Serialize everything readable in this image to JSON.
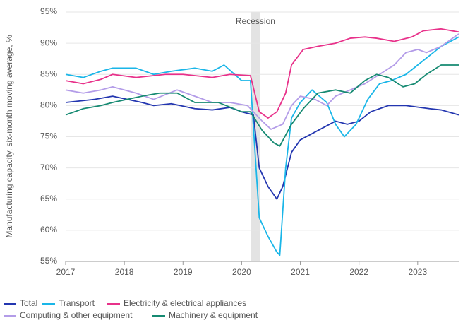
{
  "chart_data": {
    "type": "line",
    "ylabel": "Manufacturing capacity, six-month moving average, %",
    "annotation": "Recession",
    "recession": [
      2020.16,
      2020.31
    ],
    "xlim": [
      2017,
      2023.7
    ],
    "xticks": [
      2017,
      2018,
      2019,
      2020,
      2021,
      2022,
      2023
    ],
    "ylim": [
      55,
      95
    ],
    "yticks": [
      {
        "value": 55,
        "label": "55%"
      },
      {
        "value": 60,
        "label": "60%"
      },
      {
        "value": 65,
        "label": "65%"
      },
      {
        "value": 70,
        "label": "70%"
      },
      {
        "value": 75,
        "label": "75%"
      },
      {
        "value": 80,
        "label": "80%"
      },
      {
        "value": 85,
        "label": "85%"
      },
      {
        "value": 90,
        "label": "90%"
      },
      {
        "value": 95,
        "label": "95%"
      }
    ],
    "grid": true,
    "legend": "bottom",
    "series": [
      {
        "name": "Total",
        "color": "#2336b0",
        "x": [
          2017,
          2017.5,
          2017.8,
          2018.3,
          2018.5,
          2018.8,
          2019.2,
          2019.5,
          2019.8,
          2020,
          2020.2,
          2020.3,
          2020.45,
          2020.6,
          2020.7,
          2020.85,
          2021,
          2021.3,
          2021.6,
          2021.8,
          2022,
          2022.2,
          2022.5,
          2022.8,
          2023.2,
          2023.4,
          2023.7
        ],
        "values": [
          80.5,
          81,
          81.5,
          80.5,
          80,
          80.3,
          79.5,
          79.3,
          79.7,
          79,
          78.5,
          70,
          67,
          65,
          67,
          72.5,
          74.5,
          76,
          77.5,
          77,
          77.5,
          79,
          80,
          80,
          79.5,
          79.3,
          78.5
        ]
      },
      {
        "name": "Transport",
        "color": "#1ab6e8",
        "x": [
          2017,
          2017.3,
          2017.6,
          2017.8,
          2018.2,
          2018.5,
          2018.8,
          2019.2,
          2019.5,
          2019.7,
          2020,
          2020.15,
          2020.3,
          2020.45,
          2020.6,
          2020.65,
          2020.75,
          2020.85,
          2021,
          2021.2,
          2021.45,
          2021.6,
          2021.75,
          2021.95,
          2022.15,
          2022.35,
          2022.55,
          2022.8,
          2023,
          2023.2,
          2023.4,
          2023.7
        ],
        "values": [
          85,
          84.5,
          85.5,
          86,
          86,
          85,
          85.5,
          86,
          85.5,
          86.5,
          84,
          84,
          62,
          59,
          56.5,
          56,
          70,
          78,
          80.5,
          82.5,
          80.5,
          77,
          75,
          77,
          81,
          83.5,
          84,
          85,
          86.5,
          88,
          89.5,
          91
        ]
      },
      {
        "name": "Electricity & electrical appliances",
        "color": "#e8318a",
        "x": [
          2017,
          2017.3,
          2017.6,
          2017.8,
          2018.2,
          2018.7,
          2019,
          2019.5,
          2019.8,
          2020.15,
          2020.3,
          2020.45,
          2020.6,
          2020.75,
          2020.85,
          2021.05,
          2021.3,
          2021.6,
          2021.85,
          2022.1,
          2022.3,
          2022.6,
          2022.9,
          2023.1,
          2023.4,
          2023.7
        ],
        "values": [
          84,
          83.5,
          84.2,
          85,
          84.5,
          85,
          85,
          84.5,
          85,
          84.8,
          79,
          78,
          79,
          82,
          86.5,
          89,
          89.5,
          90,
          90.8,
          91,
          90.8,
          90.3,
          91,
          92,
          92.3,
          91.8
        ]
      },
      {
        "name": "Computing & other equipment",
        "color": "#b39ce8",
        "x": [
          2017,
          2017.3,
          2017.6,
          2017.8,
          2018.2,
          2018.5,
          2018.9,
          2019.2,
          2019.5,
          2019.8,
          2020.1,
          2020.35,
          2020.5,
          2020.7,
          2020.85,
          2021,
          2021.25,
          2021.45,
          2021.6,
          2021.85,
          2022.1,
          2022.35,
          2022.6,
          2022.8,
          2023,
          2023.15,
          2023.4,
          2023.7
        ],
        "values": [
          82.5,
          82,
          82.5,
          83,
          82,
          81,
          82.5,
          81.5,
          80.5,
          80.5,
          80,
          77.5,
          76.2,
          77,
          80,
          81.5,
          81,
          80,
          81.5,
          82.5,
          83.5,
          85,
          86.5,
          88.5,
          89,
          88.5,
          89.5,
          91.5
        ]
      },
      {
        "name": "Machinery & equipment",
        "color": "#168a72",
        "x": [
          2017,
          2017.3,
          2017.6,
          2017.8,
          2018.3,
          2018.6,
          2018.9,
          2019.2,
          2019.6,
          2020,
          2020.15,
          2020.35,
          2020.55,
          2020.65,
          2020.85,
          2021.05,
          2021.3,
          2021.6,
          2021.85,
          2022.1,
          2022.3,
          2022.5,
          2022.75,
          2022.95,
          2023.15,
          2023.4,
          2023.7
        ],
        "values": [
          78.5,
          79.5,
          80,
          80.5,
          81.5,
          82,
          82,
          80.5,
          80.5,
          79,
          79,
          76,
          74,
          73.5,
          77,
          79.5,
          82,
          82.5,
          82,
          84,
          85,
          84.5,
          83,
          83.5,
          85,
          86.5,
          86.5
        ]
      }
    ]
  }
}
